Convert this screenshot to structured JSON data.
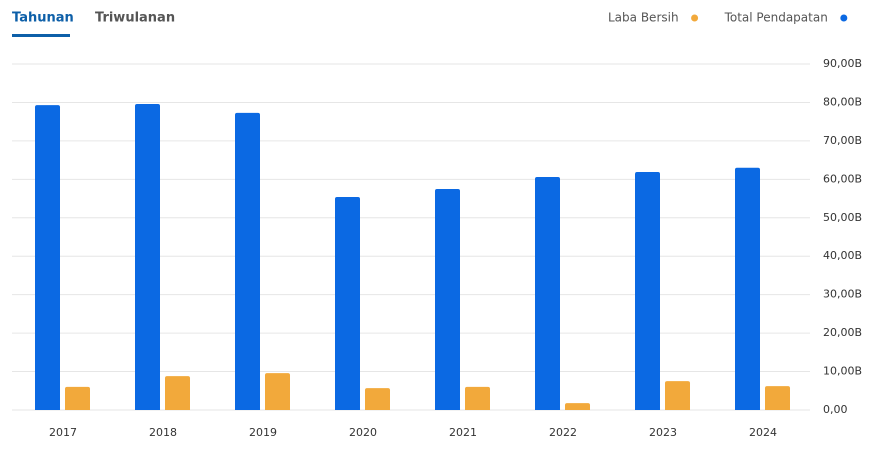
{
  "tabs": [
    "Tahunan",
    "Triwulanan"
  ],
  "chart_data": {
    "type": "bar",
    "categories": [
      "2017",
      "2018",
      "2019",
      "2020",
      "2021",
      "2022",
      "2023",
      "2024"
    ],
    "series": [
      {
        "name": "Laba Bersih",
        "color": "#f2a93b",
        "values": [
          6.0,
          8.8,
          9.6,
          5.7,
          6.0,
          1.8,
          7.5,
          6.2
        ]
      },
      {
        "name": "Total Pendapatan",
        "color": "#0b69e3",
        "values": [
          79.3,
          79.6,
          77.3,
          55.4,
          57.5,
          60.6,
          61.9,
          63.0
        ]
      }
    ],
    "ylim": [
      0,
      90
    ],
    "yticks": [
      {
        "value": 0,
        "label": "0,00"
      },
      {
        "value": 10,
        "label": "10,00B"
      },
      {
        "value": 20,
        "label": "20,00B"
      },
      {
        "value": 30,
        "label": "30,00B"
      },
      {
        "value": 40,
        "label": "40,00B"
      },
      {
        "value": 50,
        "label": "50,00B"
      },
      {
        "value": 60,
        "label": "60,00B"
      },
      {
        "value": 70,
        "label": "70,00B"
      },
      {
        "value": 80,
        "label": "80,00B"
      },
      {
        "value": 90,
        "label": "90,00B"
      }
    ],
    "grid": true
  }
}
